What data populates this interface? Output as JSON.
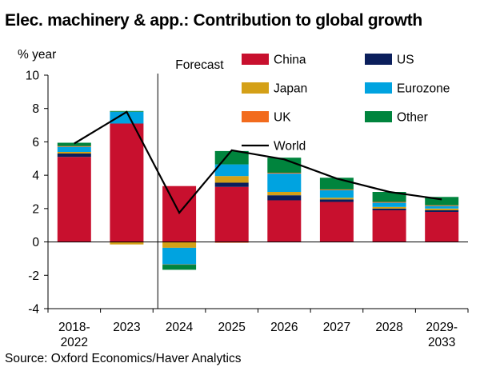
{
  "chart_data": {
    "type": "bar",
    "stacked": true,
    "title": "Elec. machinery & app.: Contribution to global growth",
    "ylabel": "% year",
    "ylim": [
      -4,
      10
    ],
    "yticks": [
      -4,
      -2,
      0,
      2,
      4,
      6,
      8,
      10
    ],
    "categories": [
      [
        "2018-",
        "2022"
      ],
      [
        "2023"
      ],
      [
        "2024"
      ],
      [
        "2025"
      ],
      [
        "2026"
      ],
      [
        "2027"
      ],
      [
        "2028"
      ],
      [
        "2029-",
        "2033"
      ]
    ],
    "forecast_label": "Forecast",
    "forecast_after_index": 1,
    "grid": false,
    "legend_position": "top-right",
    "series": [
      {
        "name": "China",
        "color": "#C8102E",
        "values": [
          5.1,
          7.1,
          3.35,
          3.3,
          2.5,
          2.4,
          1.9,
          1.8
        ]
      },
      {
        "name": "US",
        "color": "#0B1F5C",
        "values": [
          0.2,
          0.0,
          0.0,
          0.25,
          0.3,
          0.15,
          0.1,
          0.1
        ]
      },
      {
        "name": "Japan",
        "color": "#D4A017",
        "values": [
          0.1,
          -0.15,
          -0.35,
          0.4,
          0.2,
          0.1,
          0.1,
          0.1
        ]
      },
      {
        "name": "Eurozone",
        "color": "#00A3E0",
        "values": [
          0.3,
          0.7,
          -1.0,
          0.7,
          1.1,
          0.45,
          0.25,
          0.15
        ]
      },
      {
        "name": "UK",
        "color": "#F26B1D",
        "values": [
          0.05,
          0.0,
          -0.02,
          -0.05,
          0.05,
          0.05,
          0.05,
          0.05
        ]
      },
      {
        "name": "Other",
        "color": "#00843D",
        "values": [
          0.2,
          0.05,
          -0.3,
          0.8,
          0.9,
          0.7,
          0.6,
          0.5
        ]
      }
    ],
    "line": {
      "name": "World",
      "color": "#000000",
      "values": [
        5.9,
        7.8,
        1.75,
        5.5,
        4.95,
        3.8,
        3.0,
        2.55
      ]
    }
  },
  "source": "Source: Oxford Economics/Haver Analytics"
}
